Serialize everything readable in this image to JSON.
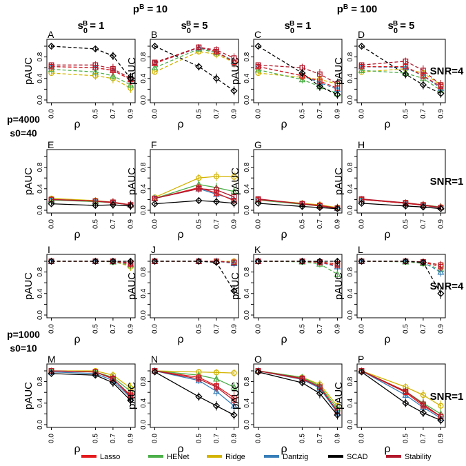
{
  "figure": {
    "column_groups": [
      {
        "label_html": "p<tspan baseline-shift='super' font-size='10'>B</tspan> = 10",
        "plain": "pB = 10"
      },
      {
        "label_html": "p<tspan baseline-shift='super' font-size='10'>B</tspan> = 100",
        "plain": "pB = 100"
      }
    ],
    "column_headers": [
      "s0B = 1",
      "s0B = 5",
      "s0B = 1",
      "s0B = 5"
    ],
    "row_labels": [
      "SNR=4",
      "SNR=1",
      "SNR=4",
      "SNR=1"
    ],
    "block_labels": [
      [
        "p=4000",
        "s0=40"
      ],
      [
        "p=1000",
        "s0=10"
      ]
    ],
    "legend": [
      {
        "name": "Lasso",
        "color": "#e41a1c"
      },
      {
        "name": "HENet",
        "color": "#4daf4a"
      },
      {
        "name": "Ridge",
        "color": "#d4b400"
      },
      {
        "name": "Dantzig",
        "color": "#377eb8"
      },
      {
        "name": "SCAD",
        "color": "#000000"
      },
      {
        "name": "Stability",
        "color": "#b2182b"
      }
    ]
  },
  "chart_data": {
    "type": "line",
    "xlabel": "ρ",
    "ylabel": "pAUC",
    "x": [
      0.0,
      0.5,
      0.7,
      0.9
    ],
    "xticks": [
      "0.0",
      "0.5",
      "0.7",
      "0.9"
    ],
    "yticks": [
      "0.0",
      "0.4",
      "0.8"
    ],
    "ylim": [
      0,
      1
    ],
    "panels": [
      {
        "label": "A",
        "style": "dashed",
        "series": {
          "Lasso": [
            0.62,
            0.6,
            0.55,
            0.38
          ],
          "HENet": [
            0.57,
            0.52,
            0.45,
            0.28
          ],
          "Ridge": [
            0.5,
            0.45,
            0.4,
            0.22
          ],
          "Dantzig": [
            0.62,
            0.6,
            0.55,
            0.38
          ],
          "SCAD": [
            1.0,
            0.95,
            0.82,
            0.4
          ],
          "Stability": [
            0.65,
            0.65,
            0.58,
            0.4
          ]
        }
      },
      {
        "label": "B",
        "style": "dashed",
        "series": {
          "Lasso": [
            0.68,
            0.98,
            0.9,
            0.7
          ],
          "HENet": [
            0.6,
            0.95,
            0.88,
            0.72
          ],
          "Ridge": [
            0.52,
            0.9,
            0.85,
            0.7
          ],
          "Dantzig": [
            0.68,
            0.97,
            0.9,
            0.72
          ],
          "SCAD": [
            1.0,
            0.62,
            0.4,
            0.17
          ],
          "Stability": [
            0.7,
            0.98,
            0.93,
            0.78
          ]
        }
      },
      {
        "label": "C",
        "style": "dashed",
        "series": {
          "Lasso": [
            0.62,
            0.45,
            0.35,
            0.22
          ],
          "HENet": [
            0.56,
            0.38,
            0.25,
            0.12
          ],
          "Ridge": [
            0.5,
            0.42,
            0.38,
            0.3
          ],
          "Dantzig": [
            0.62,
            0.45,
            0.32,
            0.2
          ],
          "SCAD": [
            1.0,
            0.5,
            0.25,
            0.1
          ],
          "Stability": [
            0.65,
            0.6,
            0.48,
            0.3
          ]
        }
      },
      {
        "label": "D",
        "style": "dashed",
        "series": {
          "Lasso": [
            0.62,
            0.62,
            0.45,
            0.25
          ],
          "HENet": [
            0.55,
            0.5,
            0.4,
            0.18
          ],
          "Ridge": [
            0.52,
            0.58,
            0.5,
            0.28
          ],
          "Dantzig": [
            0.62,
            0.6,
            0.45,
            0.22
          ],
          "SCAD": [
            1.0,
            0.48,
            0.28,
            0.12
          ],
          "Stability": [
            0.65,
            0.72,
            0.55,
            0.28
          ]
        }
      },
      {
        "label": "E",
        "style": "solid",
        "series": {
          "Lasso": [
            0.2,
            0.17,
            0.14,
            0.1
          ],
          "HENet": [
            0.19,
            0.16,
            0.14,
            0.1
          ],
          "Ridge": [
            0.22,
            0.18,
            0.15,
            0.1
          ],
          "Dantzig": [
            0.2,
            0.17,
            0.14,
            0.1
          ],
          "SCAD": [
            0.12,
            0.09,
            0.1,
            0.08
          ],
          "Stability": [
            0.2,
            0.17,
            0.15,
            0.1
          ]
        }
      },
      {
        "label": "F",
        "style": "solid",
        "series": {
          "Lasso": [
            0.22,
            0.42,
            0.32,
            0.18
          ],
          "HENet": [
            0.22,
            0.48,
            0.42,
            0.35
          ],
          "Ridge": [
            0.24,
            0.6,
            0.63,
            0.62
          ],
          "Dantzig": [
            0.22,
            0.4,
            0.3,
            0.2
          ],
          "SCAD": [
            0.12,
            0.18,
            0.16,
            0.13
          ],
          "Stability": [
            0.22,
            0.4,
            0.38,
            0.25
          ]
        }
      },
      {
        "label": "G",
        "style": "solid",
        "series": {
          "Lasso": [
            0.2,
            0.12,
            0.08,
            0.04
          ],
          "HENet": [
            0.19,
            0.11,
            0.08,
            0.04
          ],
          "Ridge": [
            0.2,
            0.13,
            0.1,
            0.05
          ],
          "Dantzig": [
            0.2,
            0.12,
            0.08,
            0.04
          ],
          "SCAD": [
            0.13,
            0.07,
            0.05,
            0.03
          ],
          "Stability": [
            0.21,
            0.12,
            0.09,
            0.04
          ]
        }
      },
      {
        "label": "H",
        "style": "solid",
        "series": {
          "Lasso": [
            0.2,
            0.13,
            0.09,
            0.05
          ],
          "HENet": [
            0.2,
            0.13,
            0.1,
            0.06
          ],
          "Ridge": [
            0.2,
            0.14,
            0.1,
            0.06
          ],
          "Dantzig": [
            0.2,
            0.13,
            0.09,
            0.05
          ],
          "SCAD": [
            0.13,
            0.08,
            0.06,
            0.03
          ],
          "Stability": [
            0.21,
            0.14,
            0.1,
            0.05
          ]
        }
      },
      {
        "label": "I",
        "style": "dashed",
        "series": {
          "Lasso": [
            1.0,
            1.0,
            1.0,
            0.95
          ],
          "HENet": [
            1.0,
            1.0,
            0.99,
            0.93
          ],
          "Ridge": [
            1.0,
            1.0,
            1.0,
            0.9
          ],
          "Dantzig": [
            1.0,
            1.0,
            1.0,
            0.95
          ],
          "SCAD": [
            1.0,
            1.0,
            1.0,
            1.0
          ],
          "Stability": [
            1.0,
            1.0,
            1.0,
            0.97
          ]
        }
      },
      {
        "label": "J",
        "style": "dashed",
        "series": {
          "Lasso": [
            1.0,
            1.0,
            1.0,
            0.98
          ],
          "HENet": [
            1.0,
            1.0,
            1.0,
            0.98
          ],
          "Ridge": [
            1.0,
            1.0,
            1.0,
            1.0
          ],
          "Dantzig": [
            1.0,
            1.0,
            1.0,
            0.96
          ],
          "SCAD": [
            1.0,
            1.0,
            0.98,
            0.45
          ],
          "Stability": [
            1.0,
            1.0,
            1.0,
            0.98
          ]
        }
      },
      {
        "label": "K",
        "style": "dashed",
        "series": {
          "Lasso": [
            1.0,
            1.0,
            0.98,
            0.92
          ],
          "HENet": [
            1.0,
            0.99,
            0.95,
            0.76
          ],
          "Ridge": [
            1.0,
            1.0,
            0.99,
            0.95
          ],
          "Dantzig": [
            1.0,
            1.0,
            0.98,
            0.9
          ],
          "SCAD": [
            1.0,
            1.0,
            1.0,
            1.0
          ],
          "Stability": [
            1.0,
            1.0,
            0.99,
            0.95
          ]
        }
      },
      {
        "label": "L",
        "style": "dashed",
        "series": {
          "Lasso": [
            1.0,
            1.0,
            0.98,
            0.9
          ],
          "HENet": [
            1.0,
            0.99,
            0.96,
            0.85
          ],
          "Ridge": [
            1.0,
            1.0,
            0.99,
            0.93
          ],
          "Dantzig": [
            1.0,
            1.0,
            0.98,
            0.8
          ],
          "SCAD": [
            1.0,
            1.0,
            0.98,
            0.4
          ],
          "Stability": [
            1.0,
            1.0,
            0.99,
            0.93
          ]
        }
      },
      {
        "label": "M",
        "style": "solid",
        "series": {
          "Lasso": [
            1.0,
            0.98,
            0.85,
            0.55
          ],
          "HENet": [
            1.0,
            0.98,
            0.88,
            0.62
          ],
          "Ridge": [
            1.0,
            1.0,
            0.92,
            0.68
          ],
          "Dantzig": [
            0.98,
            0.95,
            0.82,
            0.5
          ],
          "SCAD": [
            0.95,
            0.92,
            0.78,
            0.45
          ],
          "Stability": [
            1.0,
            0.98,
            0.86,
            0.52
          ]
        }
      },
      {
        "label": "N",
        "style": "solid",
        "series": {
          "Lasso": [
            1.0,
            0.88,
            0.72,
            0.5
          ],
          "HENet": [
            1.0,
            0.92,
            0.85,
            0.7
          ],
          "Ridge": [
            1.0,
            0.98,
            0.97,
            0.96
          ],
          "Dantzig": [
            1.0,
            0.82,
            0.62,
            0.35
          ],
          "SCAD": [
            0.98,
            0.52,
            0.35,
            0.18
          ],
          "Stability": [
            1.0,
            0.85,
            0.7,
            0.45
          ]
        }
      },
      {
        "label": "O",
        "style": "solid",
        "series": {
          "Lasso": [
            1.0,
            0.85,
            0.7,
            0.25
          ],
          "HENet": [
            1.0,
            0.88,
            0.72,
            0.3
          ],
          "Ridge": [
            1.0,
            0.88,
            0.75,
            0.35
          ],
          "Dantzig": [
            1.0,
            0.84,
            0.68,
            0.22
          ],
          "SCAD": [
            0.98,
            0.78,
            0.58,
            0.18
          ],
          "Stability": [
            1.0,
            0.86,
            0.7,
            0.25
          ]
        }
      },
      {
        "label": "P",
        "style": "solid",
        "series": {
          "Lasso": [
            1.0,
            0.6,
            0.35,
            0.15
          ],
          "HENet": [
            1.0,
            0.62,
            0.4,
            0.2
          ],
          "Ridge": [
            1.0,
            0.7,
            0.55,
            0.35
          ],
          "Dantzig": [
            1.0,
            0.55,
            0.32,
            0.12
          ],
          "SCAD": [
            0.98,
            0.4,
            0.22,
            0.08
          ],
          "Stability": [
            1.0,
            0.62,
            0.38,
            0.15
          ]
        }
      }
    ]
  }
}
